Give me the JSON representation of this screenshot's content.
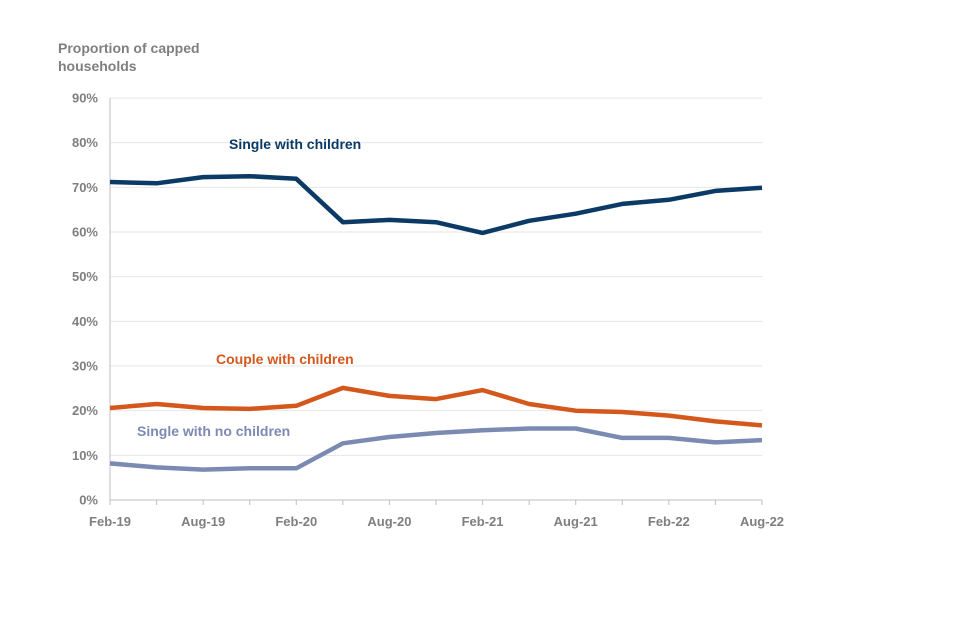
{
  "chart_data": {
    "type": "line",
    "title": "",
    "ylabel_lines": [
      "Proportion of capped",
      "households"
    ],
    "xlabel": "",
    "categories": [
      "Feb-19",
      "May-19",
      "Aug-19",
      "Nov-19",
      "Feb-20",
      "May-20",
      "Aug-20",
      "Nov-20",
      "Feb-21",
      "May-21",
      "Aug-21",
      "Nov-21",
      "Feb-22",
      "May-22",
      "Aug-22"
    ],
    "x_tick_labels": [
      "Feb-19",
      "Aug-19",
      "Feb-20",
      "Aug-20",
      "Feb-21",
      "Aug-21",
      "Feb-22",
      "Aug-22"
    ],
    "ylim": [
      0,
      90
    ],
    "y_ticks": [
      0,
      10,
      20,
      30,
      40,
      50,
      60,
      70,
      80,
      90
    ],
    "y_tick_labels": [
      "0%",
      "10%",
      "20%",
      "30%",
      "40%",
      "50%",
      "60%",
      "70%",
      "80%",
      "90%"
    ],
    "grid": true,
    "series": [
      {
        "name": "Single with children",
        "color": "#0b3a66",
        "values": [
          71.2,
          70.9,
          72.3,
          72.5,
          71.9,
          62.2,
          62.7,
          62.2,
          59.8,
          62.5,
          64.1,
          66.3,
          67.2,
          69.2,
          69.9
        ]
      },
      {
        "name": "Couple with children",
        "color": "#d4581c",
        "values": [
          20.6,
          21.5,
          20.6,
          20.4,
          21.1,
          25.1,
          23.3,
          22.6,
          24.6,
          21.5,
          20.0,
          19.7,
          18.9,
          17.6,
          16.7
        ]
      },
      {
        "name": "Single with no children",
        "color": "#7b8ab3",
        "values": [
          8.2,
          7.3,
          6.8,
          7.1,
          7.1,
          12.7,
          14.1,
          15.0,
          15.6,
          16.0,
          16.0,
          13.9,
          13.9,
          12.9,
          13.4
        ]
      }
    ]
  }
}
